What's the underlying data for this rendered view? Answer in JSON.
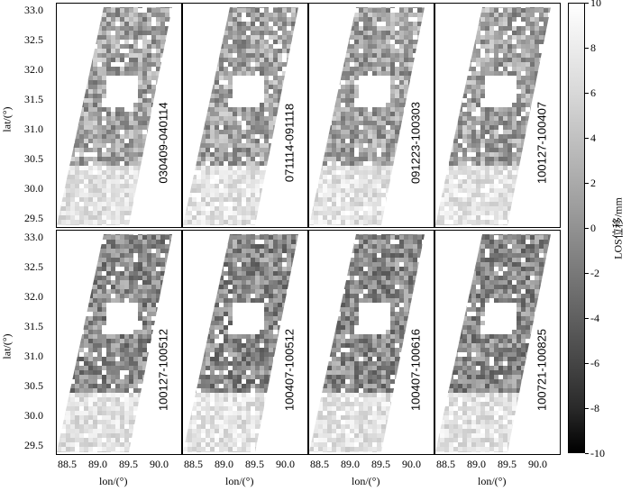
{
  "chart_data": {
    "type": "heatmap",
    "panels": [
      {
        "label": "030409-040114"
      },
      {
        "label": "071114-091118"
      },
      {
        "label": "091223-100303"
      },
      {
        "label": "100127-100407"
      },
      {
        "label": "100127-100512"
      },
      {
        "label": "100407-100512"
      },
      {
        "label": "100407-100616"
      },
      {
        "label": "100721-100825"
      }
    ],
    "x_ticks": [
      "88.5",
      "89.0",
      "89.5",
      "90.0"
    ],
    "y_ticks": [
      "33.0",
      "32.5",
      "32.0",
      "31.5",
      "31.0",
      "30.5",
      "30.0",
      "29.5"
    ],
    "xlabel": "lon/(°)",
    "ylabel": "lat/(°)",
    "colorbar": {
      "label": "LOS位移/mm",
      "ticks": [
        "10",
        "8",
        "6",
        "4",
        "2",
        "0",
        "-2",
        "-4",
        "-6",
        "-8",
        "-10"
      ],
      "range": [
        -10,
        10
      ],
      "cmap": "gray"
    }
  }
}
